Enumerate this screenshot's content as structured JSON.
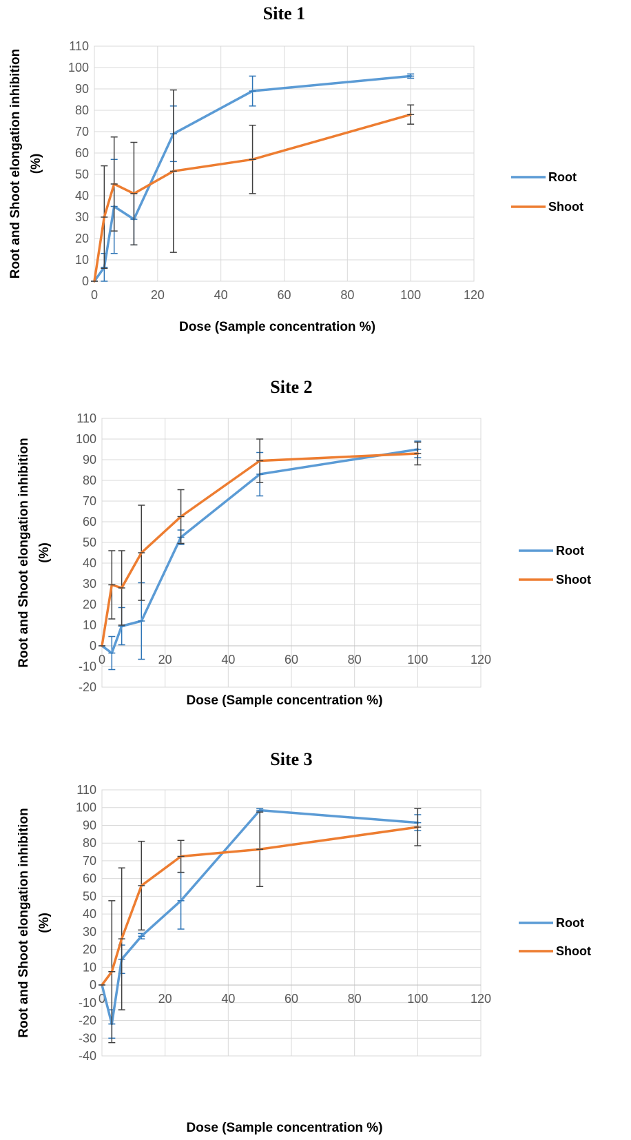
{
  "chart_data": [
    {
      "type": "line",
      "title": "Site 1",
      "xlabel": "Dose (Sample concentration %)",
      "ylabel_lines": [
        "Root  and Shoot elongation inhibition",
        "(%)"
      ],
      "xlim": [
        0,
        120
      ],
      "ylim": [
        0,
        110
      ],
      "x_ticks": [
        0,
        20,
        40,
        60,
        80,
        100,
        120
      ],
      "y_ticks": [
        0,
        10,
        20,
        30,
        40,
        50,
        60,
        70,
        80,
        90,
        100,
        110
      ],
      "grid": true,
      "legend": "right",
      "series": [
        {
          "name": "Root",
          "color": "#5b9bd5",
          "error_color": "#2e75b6",
          "x": [
            0,
            3.125,
            6.25,
            12.5,
            25,
            50,
            100
          ],
          "y": [
            0,
            6.5,
            35,
            29,
            69,
            89,
            96
          ],
          "err": [
            0,
            6.5,
            22,
            12,
            13,
            7,
            1
          ]
        },
        {
          "name": "Shoot",
          "color": "#ed7d31",
          "error_color": "#404040",
          "x": [
            0,
            3.125,
            6.25,
            12.5,
            25,
            50,
            100
          ],
          "y": [
            0,
            30,
            45.5,
            41,
            51.5,
            57,
            78
          ],
          "err": [
            0,
            24,
            22,
            24,
            38,
            16,
            4.5
          ]
        }
      ]
    },
    {
      "type": "line",
      "title": "Site 2",
      "xlabel": "Dose (Sample concentration %)",
      "ylabel_lines": [
        "Root  and Shoot elongation inhibition",
        "(%)"
      ],
      "xlim": [
        0,
        120
      ],
      "ylim": [
        -20,
        110
      ],
      "x_ticks": [
        0,
        20,
        40,
        60,
        80,
        100,
        120
      ],
      "y_ticks": [
        -20,
        -10,
        0,
        10,
        20,
        30,
        40,
        50,
        60,
        70,
        80,
        90,
        100,
        110
      ],
      "grid": true,
      "legend": "right",
      "series": [
        {
          "name": "Root",
          "color": "#5b9bd5",
          "error_color": "#2e75b6",
          "x": [
            0,
            3.125,
            6.25,
            12.5,
            25,
            50,
            100
          ],
          "y": [
            0,
            -3.5,
            9.5,
            12,
            52.5,
            83,
            95
          ],
          "err": [
            0,
            8,
            9,
            18.5,
            3.5,
            10.5,
            4
          ]
        },
        {
          "name": "Shoot",
          "color": "#ed7d31",
          "error_color": "#404040",
          "x": [
            0,
            3.125,
            6.25,
            12.5,
            25,
            50,
            100
          ],
          "y": [
            0,
            29.5,
            28,
            45,
            62.5,
            89.5,
            93
          ],
          "err": [
            0,
            16.5,
            18,
            23,
            13,
            10.5,
            5.5
          ]
        }
      ]
    },
    {
      "type": "line",
      "title": "Site 3",
      "xlabel": "Dose (Sample concentration %)",
      "ylabel_lines": [
        "Root  and Shoot elongation inhibition",
        "(%)"
      ],
      "xlim": [
        0,
        120
      ],
      "ylim": [
        -40,
        110
      ],
      "x_ticks": [
        0,
        20,
        40,
        60,
        80,
        100,
        120
      ],
      "y_ticks": [
        -40,
        -30,
        -20,
        -10,
        0,
        10,
        20,
        30,
        40,
        50,
        60,
        70,
        80,
        90,
        100,
        110
      ],
      "grid": true,
      "legend": "right",
      "series": [
        {
          "name": "Root",
          "color": "#5b9bd5",
          "error_color": "#2e75b6",
          "x": [
            0,
            3.125,
            6.25,
            12.5,
            25,
            50,
            100
          ],
          "y": [
            0,
            -22,
            14.5,
            27.5,
            47.5,
            98.5,
            91.5
          ],
          "err": [
            0,
            8,
            8,
            1.5,
            16,
            1,
            4.5
          ]
        },
        {
          "name": "Shoot",
          "color": "#ed7d31",
          "error_color": "#404040",
          "x": [
            0,
            3.125,
            6.25,
            12.5,
            25,
            50,
            100
          ],
          "y": [
            0,
            7.5,
            26,
            56,
            72.5,
            76.5,
            89
          ],
          "err": [
            0,
            40,
            40,
            25,
            9,
            21,
            10.5
          ]
        }
      ]
    }
  ]
}
